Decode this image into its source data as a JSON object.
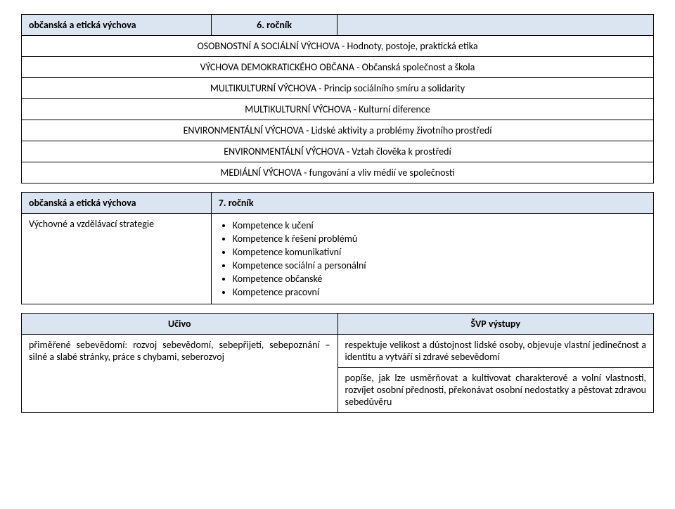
{
  "colors": {
    "header_bg": "#dbe5f1",
    "border": "#000000",
    "text": "#000000",
    "background": "#ffffff"
  },
  "table1": {
    "subject": "občanská a etická výchova",
    "year": "6. ročník",
    "rows": [
      "OSOBNOSTNÍ A SOCIÁLNÍ VÝCHOVA - Hodnoty, postoje, praktická etika",
      "VÝCHOVA DEMOKRATICKÉHO OBČANA - Občanská společnost a škola",
      "MULTIKULTURNÍ VÝCHOVA - Princip sociálního smíru a solidarity",
      "MULTIKULTURNÍ VÝCHOVA - Kulturní diference",
      "ENVIRONMENTÁLNÍ VÝCHOVA - Lidské aktivity a problémy životního prostředí",
      "ENVIRONMENTÁLNÍ VÝCHOVA - Vztah člověka k prostředí",
      "MEDIÁLNÍ VÝCHOVA - fungování a vliv médií ve společnosti"
    ]
  },
  "table2": {
    "subject": "občanská a etická výchova",
    "year": "7. ročník",
    "strategy_label": "Výchovné a vzdělávací strategie",
    "competencies": [
      "Kompetence k učení",
      "Kompetence k řešení problémů",
      "Kompetence komunikativní",
      "Kompetence sociální a personální",
      "Kompetence občanské",
      "Kompetence pracovní"
    ]
  },
  "table3": {
    "headers": {
      "left": "Učivo",
      "right": "ŠVP výstupy"
    },
    "left": "přiměřené sebevědomí: rozvoj sebevědomí, sebepřijetí, sebepoznání – silné a slabé stránky, práce s chybami, seberozvoj",
    "right1": "respektuje velikost a důstojnost lidské osoby, objevuje vlastní jedinečnost a identitu a vytváří si zdravé sebevědomí",
    "right2": "popíše, jak lze usměrňovat a kultivovat charakterové a volní vlastnosti, rozvíjet osobní přednosti, překonávat osobní nedostatky a pěstovat zdravou sebedůvěru"
  }
}
